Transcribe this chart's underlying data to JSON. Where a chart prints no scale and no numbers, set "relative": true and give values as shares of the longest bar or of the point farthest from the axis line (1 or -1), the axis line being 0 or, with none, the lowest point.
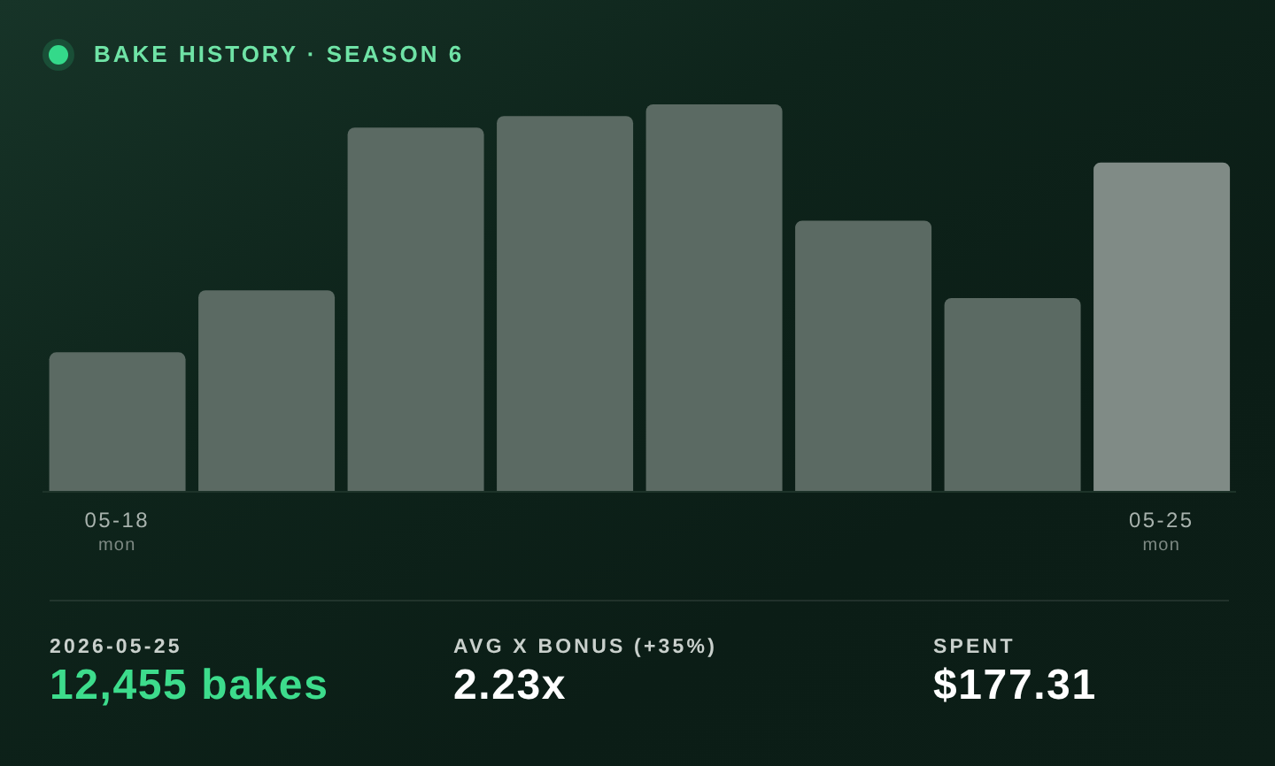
{
  "chart_data": {
    "type": "bar",
    "title": "BAKE HISTORY · SEASON 6",
    "categories": [
      "05-18\nmon",
      null,
      null,
      null,
      null,
      null,
      null,
      "05-25\nmon"
    ],
    "values": [
      0.36,
      0.52,
      0.94,
      0.97,
      1,
      0.7,
      0.5,
      0.85
    ],
    "relative": true,
    "colors": [
      "#5b6a63",
      "#5b6a63",
      "#5b6a63",
      "#5b6a63",
      "#5b6a63",
      "#5b6a63",
      "#5b6a63",
      "#808b86"
    ],
    "annotations": [
      "2026-05-25",
      "12,455 bakes",
      "AVG X BONUS (+35%)",
      "2.23x",
      "SPENT",
      "$177.31"
    ]
  }
}
